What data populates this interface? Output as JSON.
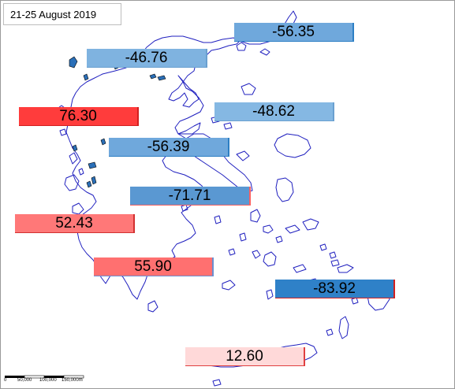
{
  "map": {
    "title": "21-25  August 2019",
    "colors": {
      "coast": "#1f1fbf",
      "island_fill": "#2a6fb8"
    },
    "labels": [
      {
        "name": "label-1",
        "text": "-56.35",
        "fill": "#6fa8dc",
        "edge": "#2d7fc4"
      },
      {
        "name": "label-2",
        "text": "-46.76",
        "fill": "#7fb3e0",
        "edge": "#6aa0d0"
      },
      {
        "name": "label-3",
        "text": "76.30",
        "fill": "#ff3c3c",
        "edge": "#d22020"
      },
      {
        "name": "label-4",
        "text": "-48.62",
        "fill": "#85b8e3",
        "edge": "#6aa0d0"
      },
      {
        "name": "label-5",
        "text": "-56.39",
        "fill": "#6fa8dc",
        "edge": "#2d7fc4"
      },
      {
        "name": "label-6",
        "text": "-71.71",
        "fill": "#5a98d2",
        "edge": "#ff6060"
      },
      {
        "name": "label-7",
        "text": "52.43",
        "fill": "#ff7878",
        "edge": "#d23030"
      },
      {
        "name": "label-8",
        "text": "55.90",
        "fill": "#ff7070",
        "edge": "#6a8ed0"
      },
      {
        "name": "label-9",
        "text": "-83.92",
        "fill": "#2f81c8",
        "edge": "#d22020"
      },
      {
        "name": "label-10",
        "text": "12.60",
        "fill": "#ffd9d9",
        "edge": "#e04040"
      }
    ],
    "scale": {
      "ticks": [
        "0",
        "50,000",
        "100,000",
        "150,000m"
      ]
    }
  }
}
